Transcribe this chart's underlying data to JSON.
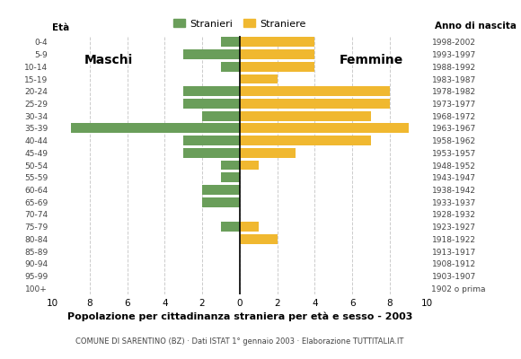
{
  "age_groups": [
    "100+",
    "95-99",
    "90-94",
    "85-89",
    "80-84",
    "75-79",
    "70-74",
    "65-69",
    "60-64",
    "55-59",
    "50-54",
    "45-49",
    "40-44",
    "35-39",
    "30-34",
    "25-29",
    "20-24",
    "15-19",
    "10-14",
    "5-9",
    "0-4"
  ],
  "birth_years": [
    "1902 o prima",
    "1903-1907",
    "1908-1912",
    "1913-1917",
    "1918-1922",
    "1923-1927",
    "1928-1932",
    "1933-1937",
    "1938-1942",
    "1943-1947",
    "1948-1952",
    "1953-1957",
    "1958-1962",
    "1963-1967",
    "1968-1972",
    "1973-1977",
    "1978-1982",
    "1983-1987",
    "1988-1992",
    "1993-1997",
    "1998-2002"
  ],
  "maschi": [
    0,
    0,
    0,
    0,
    0,
    1,
    0,
    2,
    2,
    1,
    1,
    3,
    3,
    9,
    2,
    3,
    3,
    0,
    1,
    3,
    1
  ],
  "femmine": [
    0,
    0,
    0,
    0,
    2,
    1,
    0,
    0,
    0,
    0,
    1,
    3,
    7,
    9,
    7,
    8,
    8,
    2,
    4,
    4,
    4
  ],
  "maschi_color": "#6a9e5a",
  "femmine_color": "#f0b830",
  "title": "Popolazione per cittadinanza straniera per età e sesso - 2003",
  "subtitle": "COMUNE DI SARENTINO (BZ) · Dati ISTAT 1° gennaio 2003 · Elaborazione TUTTITALIA.IT",
  "legend_maschi": "Stranieri",
  "legend_femmine": "Straniere",
  "label_maschi": "Maschi",
  "label_femmine": "Femmine",
  "eta_label": "Età",
  "anno_label": "Anno di nascita",
  "xlim": 10,
  "background_color": "#ffffff",
  "grid_color": "#cccccc"
}
